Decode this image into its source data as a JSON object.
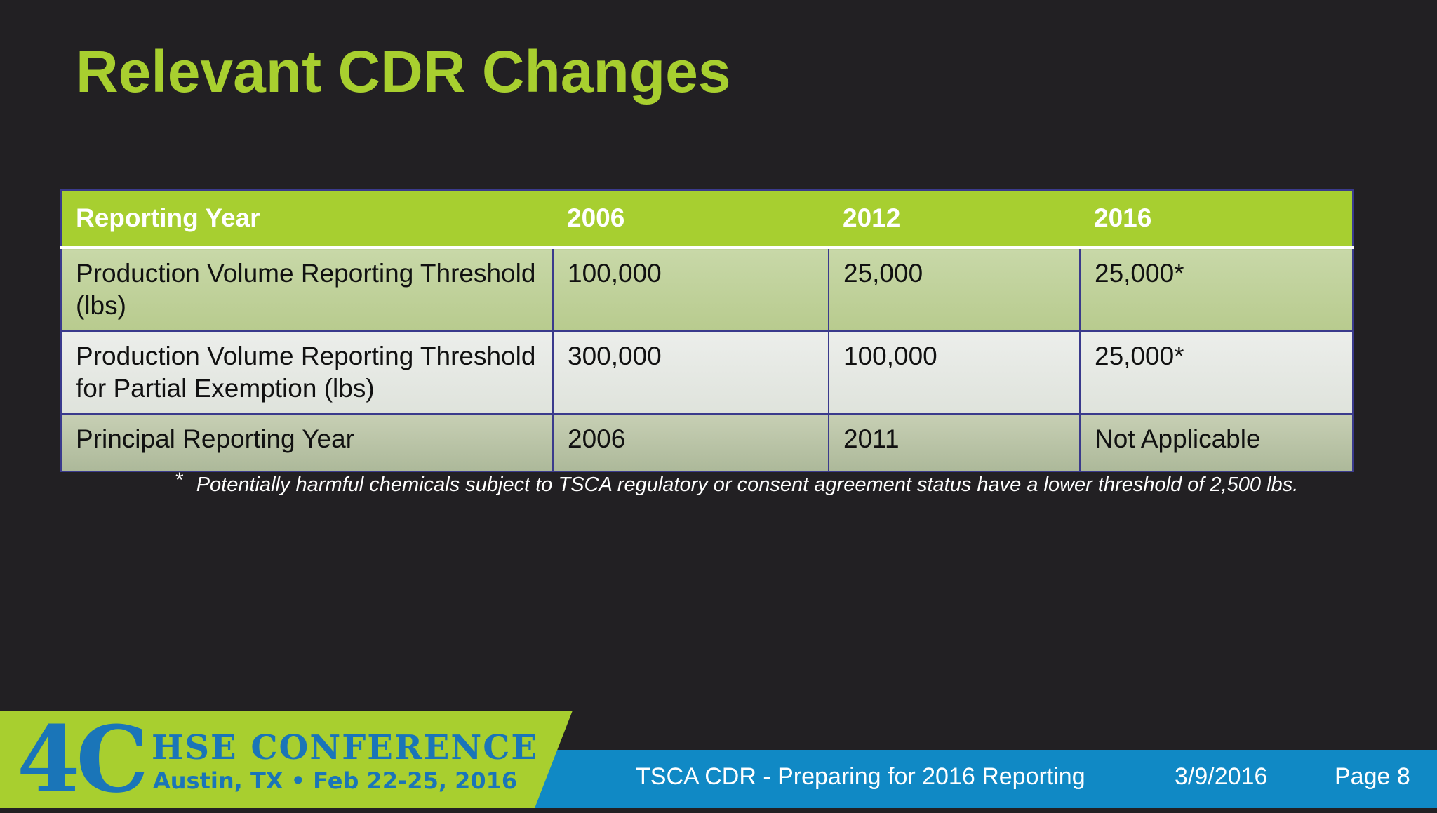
{
  "slide": {
    "title": "Relevant CDR Changes"
  },
  "table": {
    "headers": [
      "Reporting Year",
      "2006",
      "2012",
      "2016"
    ],
    "rows": [
      [
        "Production Volume Reporting Threshold (lbs)",
        "100,000",
        "25,000",
        "25,000*"
      ],
      [
        "Production Volume Reporting Threshold for Partial Exemption (lbs)",
        "300,000",
        "100,000",
        "25,000*"
      ],
      [
        "Principal Reporting Year",
        "2006",
        "2011",
        "Not Applicable"
      ]
    ]
  },
  "footnote": {
    "marker": "*",
    "text": "Potentially harmful chemicals subject to TSCA regulatory or consent agreement status have a lower threshold of 2,500 lbs."
  },
  "footer": {
    "logo_mark": "4C",
    "logo_line1": "HSE CONFERENCE",
    "logo_line2": "Austin, TX • Feb 22-25, 2016",
    "presentation_title": "TSCA CDR - Preparing for 2016 Reporting",
    "date": "3/9/2016",
    "page": "Page 8"
  },
  "colors": {
    "accent_green": "#a8cf2f",
    "footer_blue": "#1089c5",
    "logo_blue": "#1a75b8",
    "background": "#222023"
  }
}
